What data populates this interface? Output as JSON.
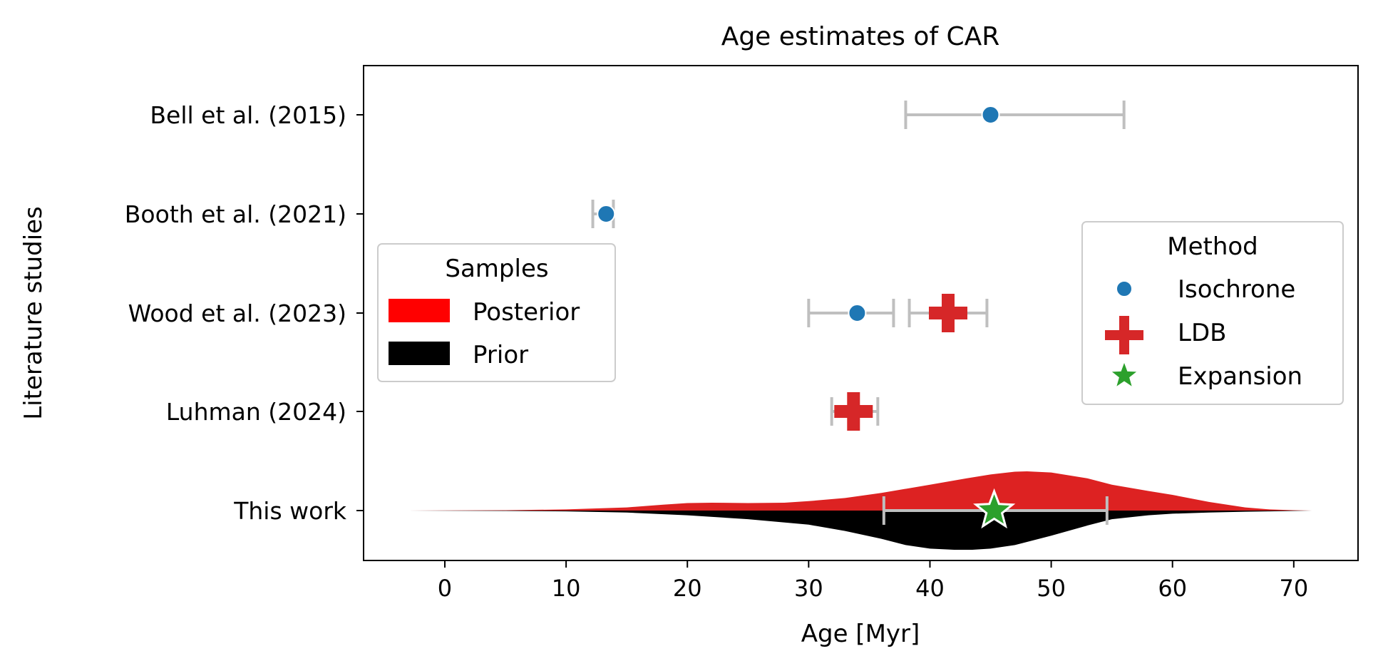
{
  "chart_data": {
    "type": "scatter",
    "title": "Age estimates of CAR",
    "xlabel": "Age [Myr]",
    "ylabel": "Literature studies",
    "xlim": [
      -6.7,
      75.3
    ],
    "xticks": [
      0,
      10,
      20,
      30,
      40,
      50,
      60,
      70
    ],
    "categories": [
      "Bell et al. (2015)",
      "Booth et al. (2021)",
      "Wood et al. (2023)",
      "Luhman (2024)",
      "This work"
    ],
    "colors": {
      "Isochrone": "#1f77b4",
      "LDB": "#d62728",
      "Expansion": "#2ca02c",
      "Posterior": "#ff0000",
      "Prior": "#000000",
      "errorbar": "#bfbfbf"
    },
    "series": [
      {
        "name": "Isochrone",
        "marker": "circle",
        "points": [
          {
            "category": "Bell et al. (2015)",
            "x": 45.0,
            "lo": 38.0,
            "hi": 56.0
          },
          {
            "category": "Booth et al. (2021)",
            "x": 13.3,
            "lo": 12.2,
            "hi": 13.9
          },
          {
            "category": "Wood et al. (2023)",
            "x": 34.0,
            "lo": 30.0,
            "hi": 37.0
          }
        ]
      },
      {
        "name": "LDB",
        "marker": "plus",
        "points": [
          {
            "category": "Wood et al. (2023)",
            "x": 41.5,
            "lo": 38.3,
            "hi": 44.7
          },
          {
            "category": "Luhman (2024)",
            "x": 33.7,
            "lo": 31.9,
            "hi": 35.7
          }
        ]
      },
      {
        "name": "Expansion",
        "marker": "star",
        "points": [
          {
            "category": "This work",
            "x": 45.3,
            "lo": 36.2,
            "hi": 54.6
          }
        ]
      }
    ],
    "distributions": [
      {
        "name": "Posterior",
        "side": "up",
        "x": [
          -3,
          5,
          10,
          15,
          18,
          20,
          22,
          25,
          28,
          30,
          33,
          36,
          40,
          43,
          45,
          47,
          48,
          50,
          53,
          55,
          58,
          60,
          63,
          66,
          68,
          70,
          71.5
        ],
        "density": [
          0,
          0.01,
          0.03,
          0.08,
          0.15,
          0.19,
          0.2,
          0.19,
          0.2,
          0.24,
          0.32,
          0.45,
          0.66,
          0.82,
          0.92,
          0.99,
          1.0,
          0.97,
          0.82,
          0.66,
          0.5,
          0.4,
          0.22,
          0.08,
          0.03,
          0.01,
          0
        ]
      },
      {
        "name": "Prior",
        "side": "down",
        "x": [
          -3,
          5,
          10,
          15,
          20,
          25,
          30,
          33,
          36,
          38,
          40,
          42,
          43.5,
          45,
          47,
          50,
          53,
          55,
          58,
          60,
          63,
          66,
          68,
          70,
          71.5
        ],
        "density": [
          0,
          0.01,
          0.02,
          0.05,
          0.12,
          0.22,
          0.36,
          0.52,
          0.72,
          0.88,
          0.97,
          1.0,
          1.0,
          0.97,
          0.88,
          0.64,
          0.38,
          0.22,
          0.12,
          0.08,
          0.05,
          0.03,
          0.02,
          0.01,
          0
        ]
      }
    ],
    "legends": [
      {
        "title": "Samples",
        "placement": "center-left",
        "entries": [
          "Posterior",
          "Prior"
        ]
      },
      {
        "title": "Method",
        "placement": "center-right",
        "entries": [
          "Isochrone",
          "LDB",
          "Expansion"
        ]
      }
    ]
  }
}
